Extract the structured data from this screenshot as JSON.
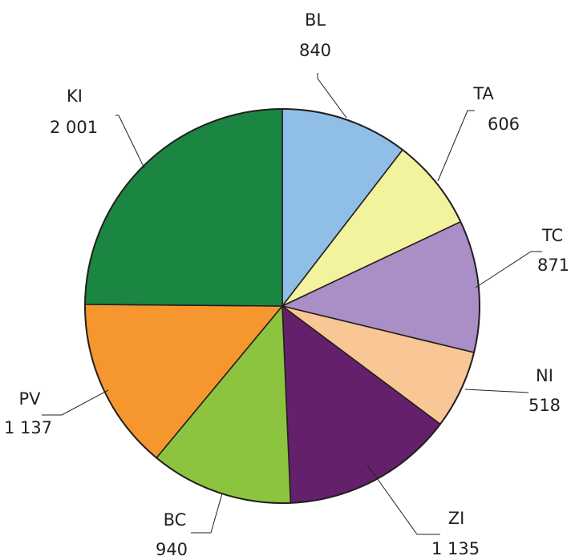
{
  "chart_data": {
    "type": "pie",
    "title": "",
    "slices": [
      {
        "label": "BL",
        "value_text": "840",
        "value": 840,
        "color": "#8fbfe6"
      },
      {
        "label": "TA",
        "value_text": "606",
        "value": 606,
        "color": "#f3f29d"
      },
      {
        "label": "TC",
        "value_text": "871",
        "value": 871,
        "color": "#a98fc5"
      },
      {
        "label": "NI",
        "value_text": "518",
        "value": 518,
        "color": "#f9c695"
      },
      {
        "label": "ZI",
        "value_text": "1 135",
        "value": 1135,
        "color": "#64206b"
      },
      {
        "label": "BC",
        "value_text": "940",
        "value": 940,
        "color": "#8cc43f"
      },
      {
        "label": "PV",
        "value_text": "1 137",
        "value": 1137,
        "color": "#f6962e"
      },
      {
        "label": "KI",
        "value_text": "2 001",
        "value": 2001,
        "color": "#1a8641"
      }
    ],
    "start_angle": "12 o'clock",
    "direction": "clockwise"
  }
}
